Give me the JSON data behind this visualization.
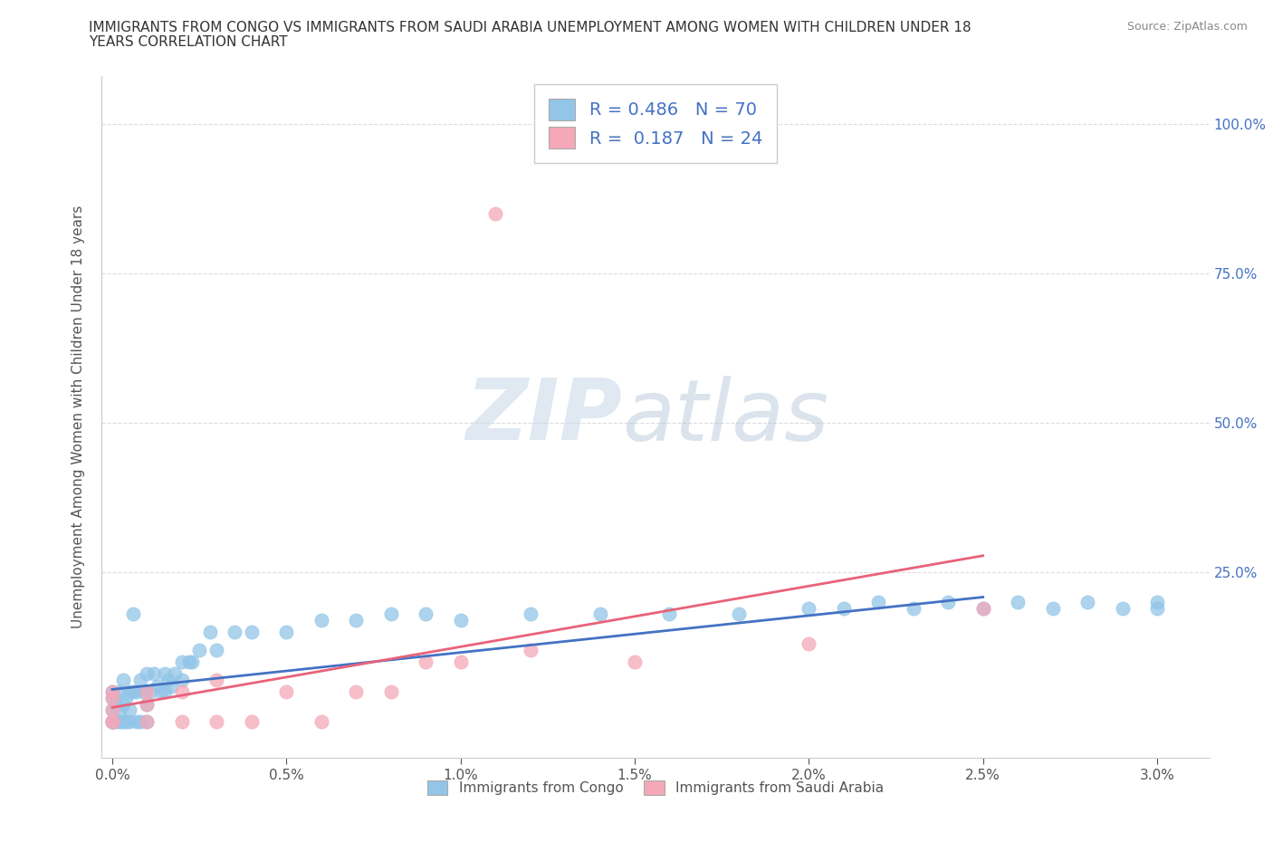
{
  "title_line1": "IMMIGRANTS FROM CONGO VS IMMIGRANTS FROM SAUDI ARABIA UNEMPLOYMENT AMONG WOMEN WITH CHILDREN UNDER 18",
  "title_line2": "YEARS CORRELATION CHART",
  "source": "Source: ZipAtlas.com",
  "ylabel": "Unemployment Among Women with Children Under 18 years",
  "xlim": [
    -0.0003,
    0.0315
  ],
  "ylim": [
    -0.06,
    1.08
  ],
  "xtick_labels": [
    "0.0%",
    "0.5%",
    "1.0%",
    "1.5%",
    "2.0%",
    "2.5%",
    "3.0%"
  ],
  "xtick_vals": [
    0.0,
    0.005,
    0.01,
    0.015,
    0.02,
    0.025,
    0.03
  ],
  "ytick_vals": [
    1.0,
    0.75,
    0.5,
    0.25
  ],
  "ytick_labels": [
    "100.0%",
    "75.0%",
    "50.0%",
    "25.0%"
  ],
  "legend1_R": "0.486",
  "legend1_N": "70",
  "legend2_R": "0.187",
  "legend2_N": "24",
  "color_congo": "#92C5E8",
  "color_saudi": "#F4A8B8",
  "trendline_color_congo": "#4472C4",
  "trendline_color_saudi": "#E8627A",
  "watermark_zip": "ZIP",
  "watermark_atlas": "atlas",
  "background_color": "#FFFFFF",
  "grid_color": "#DDDDDD",
  "congo_x": [
    0.0,
    0.0,
    0.0,
    0.0,
    0.0,
    0.0,
    0.0,
    0.0001,
    0.0001,
    0.0002,
    0.0002,
    0.0002,
    0.0003,
    0.0003,
    0.0003,
    0.0004,
    0.0004,
    0.0005,
    0.0005,
    0.0005,
    0.0006,
    0.0006,
    0.0007,
    0.0007,
    0.0008,
    0.0008,
    0.0009,
    0.001,
    0.001,
    0.001,
    0.0011,
    0.0012,
    0.0013,
    0.0014,
    0.0015,
    0.0015,
    0.0016,
    0.0017,
    0.0018,
    0.002,
    0.002,
    0.0022,
    0.0023,
    0.0025,
    0.0028,
    0.003,
    0.0035,
    0.004,
    0.005,
    0.006,
    0.007,
    0.008,
    0.009,
    0.01,
    0.012,
    0.014,
    0.016,
    0.018,
    0.02,
    0.021,
    0.022,
    0.023,
    0.024,
    0.025,
    0.026,
    0.027,
    0.028,
    0.029,
    0.03,
    0.03
  ],
  "congo_y": [
    0.0,
    0.0,
    0.0,
    0.0,
    0.02,
    0.04,
    0.05,
    0.0,
    0.03,
    0.0,
    0.02,
    0.05,
    0.0,
    0.03,
    0.07,
    0.0,
    0.04,
    0.0,
    0.02,
    0.05,
    0.05,
    0.18,
    0.0,
    0.05,
    0.0,
    0.07,
    0.05,
    0.0,
    0.03,
    0.08,
    0.05,
    0.08,
    0.06,
    0.05,
    0.05,
    0.08,
    0.07,
    0.06,
    0.08,
    0.1,
    0.07,
    0.1,
    0.1,
    0.12,
    0.15,
    0.12,
    0.15,
    0.15,
    0.15,
    0.17,
    0.17,
    0.18,
    0.18,
    0.17,
    0.18,
    0.18,
    0.18,
    0.18,
    0.19,
    0.19,
    0.2,
    0.19,
    0.2,
    0.19,
    0.2,
    0.19,
    0.2,
    0.19,
    0.2,
    0.19
  ],
  "saudi_x": [
    0.0,
    0.0,
    0.0,
    0.0,
    0.0,
    0.001,
    0.001,
    0.001,
    0.002,
    0.002,
    0.003,
    0.003,
    0.004,
    0.005,
    0.006,
    0.007,
    0.008,
    0.009,
    0.01,
    0.011,
    0.012,
    0.015,
    0.02,
    0.025
  ],
  "saudi_y": [
    0.0,
    0.0,
    0.02,
    0.04,
    0.05,
    0.0,
    0.03,
    0.05,
    0.0,
    0.05,
    0.0,
    0.07,
    0.0,
    0.05,
    0.0,
    0.05,
    0.05,
    0.1,
    0.1,
    0.85,
    0.12,
    0.1,
    0.13,
    0.19
  ]
}
